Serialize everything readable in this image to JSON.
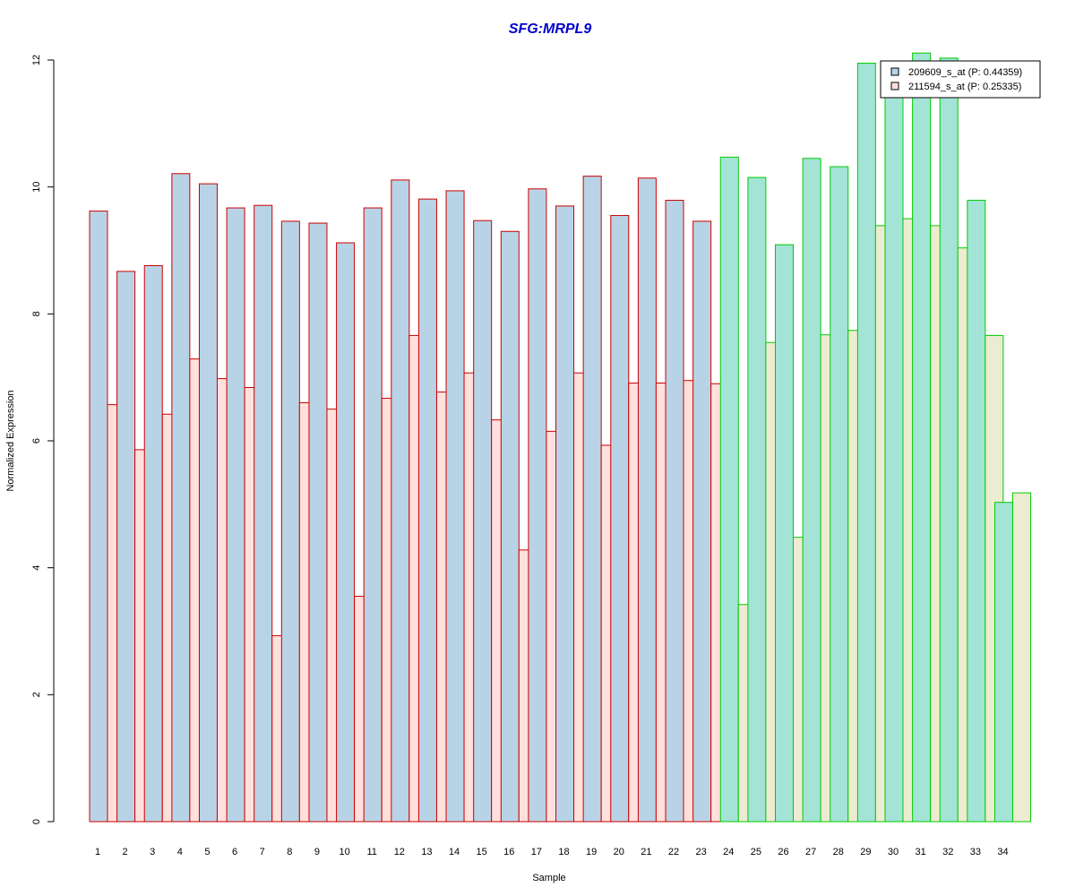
{
  "chart_data": {
    "type": "bar",
    "title": "SFG:MRPL9",
    "xlabel": "Sample",
    "ylabel": "Normalized Expression",
    "ylim": [
      0,
      12
    ],
    "yticks": [
      "0",
      "2",
      "4",
      "6",
      "8",
      "10",
      "12"
    ],
    "grid": false,
    "legend_position": "top-right",
    "categories": [
      "1",
      "2",
      "3",
      "4",
      "5",
      "6",
      "7",
      "8",
      "9",
      "10",
      "11",
      "12",
      "13",
      "14",
      "15",
      "16",
      "17",
      "18",
      "19",
      "20",
      "21",
      "22",
      "23",
      "24",
      "25",
      "26",
      "27",
      "28",
      "29",
      "30",
      "31",
      "32",
      "33",
      "34"
    ],
    "series": [
      {
        "name": "209609_s_at (P: 0.44359)",
        "values": [
          9.62,
          8.67,
          8.76,
          10.21,
          10.05,
          9.67,
          9.71,
          9.46,
          9.43,
          9.12,
          9.67,
          10.11,
          9.81,
          9.94,
          9.47,
          9.3,
          9.97,
          9.7,
          10.17,
          9.55,
          10.14,
          9.79,
          9.46,
          10.47,
          10.15,
          9.09,
          10.45,
          10.32,
          11.95,
          11.55,
          12.11,
          12.03,
          9.79,
          5.03
        ]
      },
      {
        "name": "211594_s_at (P: 0.25335)",
        "values": [
          6.57,
          5.86,
          6.42,
          7.29,
          6.98,
          6.84,
          2.93,
          6.6,
          6.5,
          3.55,
          6.67,
          7.66,
          6.77,
          7.07,
          6.33,
          4.28,
          6.15,
          7.07,
          5.93,
          6.91,
          6.91,
          6.95,
          6.9,
          3.42,
          7.55,
          4.48,
          7.67,
          7.74,
          9.39,
          9.5,
          9.39,
          9.04,
          7.66,
          5.18
        ]
      }
    ],
    "group_split_index": 23,
    "colors": {
      "title": "#0000cc",
      "group1_stroke": "#cc0000",
      "group2_stroke": "#00cc00",
      "group1_series1_fill": "#b9d3e6",
      "group1_series2_fill": "#ffe0dc",
      "group2_series1_fill": "#a3e4d7",
      "group2_series2_fill": "#eeebd3",
      "legend_series1_fill": "#b9d3e6",
      "legend_series2_fill": "#ffe0dc",
      "axis": "#000000"
    }
  }
}
